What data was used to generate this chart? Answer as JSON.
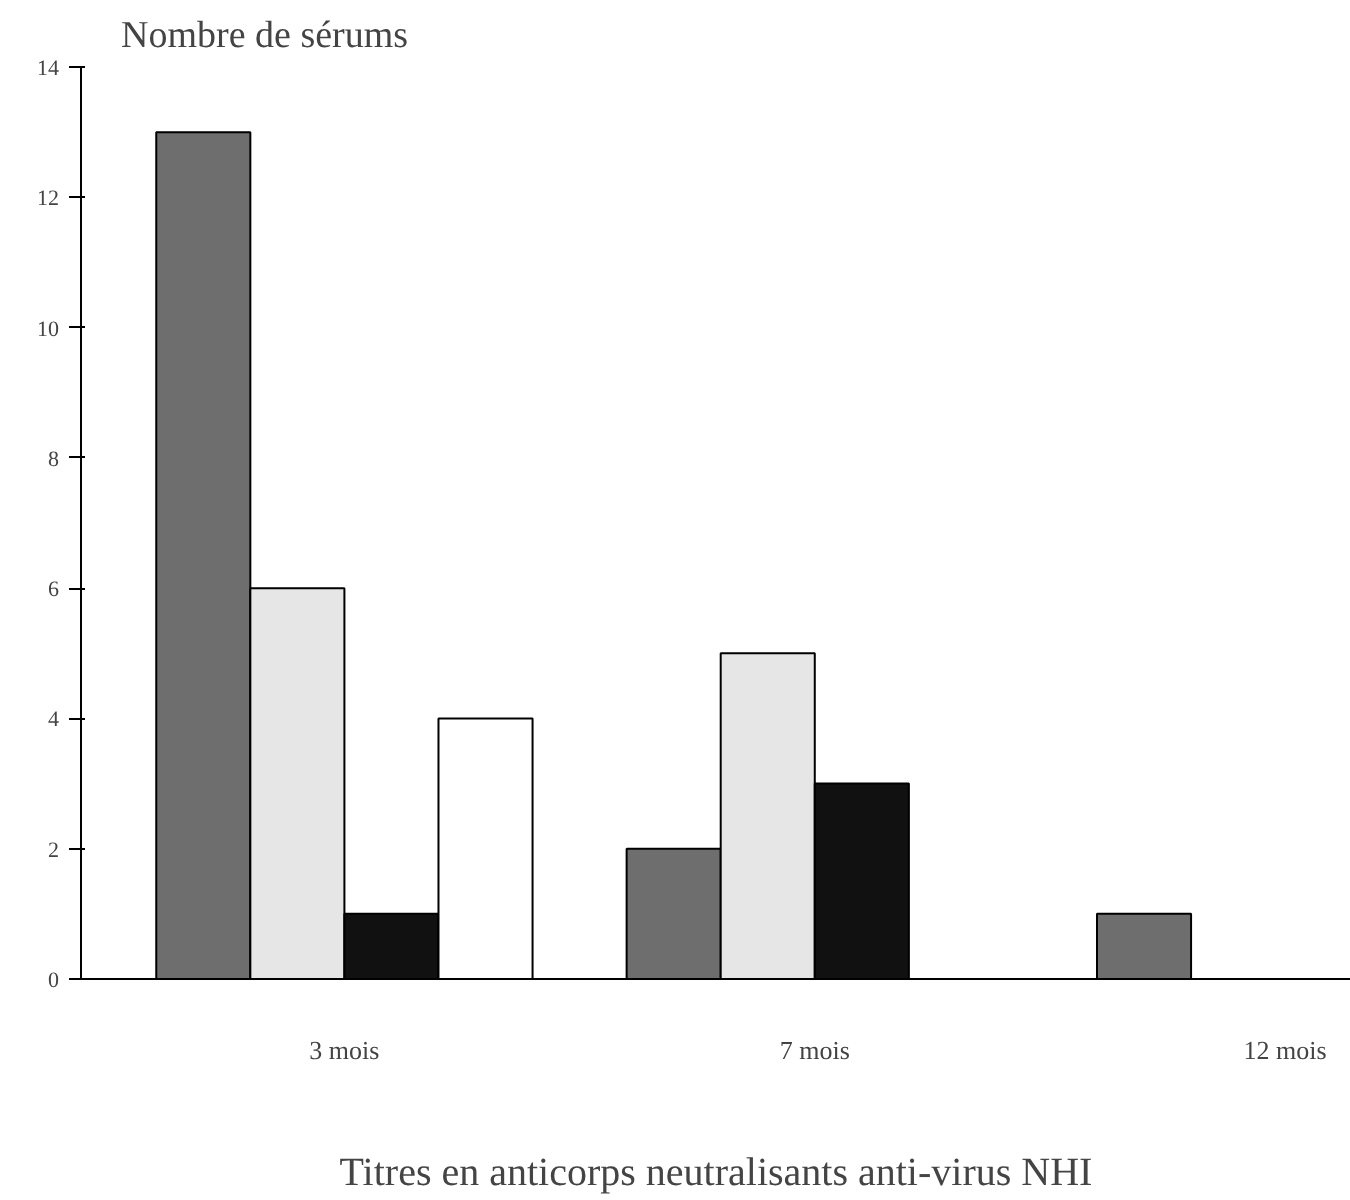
{
  "chart_data": {
    "type": "bar",
    "ylabel": "Nombre de sérums",
    "xlabel": "Titres en anticorps neutralisants anti-virus NHI",
    "categories": [
      "3 mois",
      "7 mois",
      "12 mois"
    ],
    "series": [
      {
        "color": "#6e6e6e",
        "values": [
          13,
          2,
          1
        ]
      },
      {
        "color": "#e6e6e6",
        "values": [
          6,
          5,
          null
        ]
      },
      {
        "color": "#111111",
        "values": [
          1,
          3,
          null
        ]
      },
      {
        "color": "#ffffff",
        "values": [
          4,
          null,
          null
        ]
      }
    ],
    "ylim": [
      0,
      14
    ],
    "yticks": [
      0,
      2,
      4,
      6,
      8,
      10,
      12,
      14
    ],
    "grid": false
  }
}
